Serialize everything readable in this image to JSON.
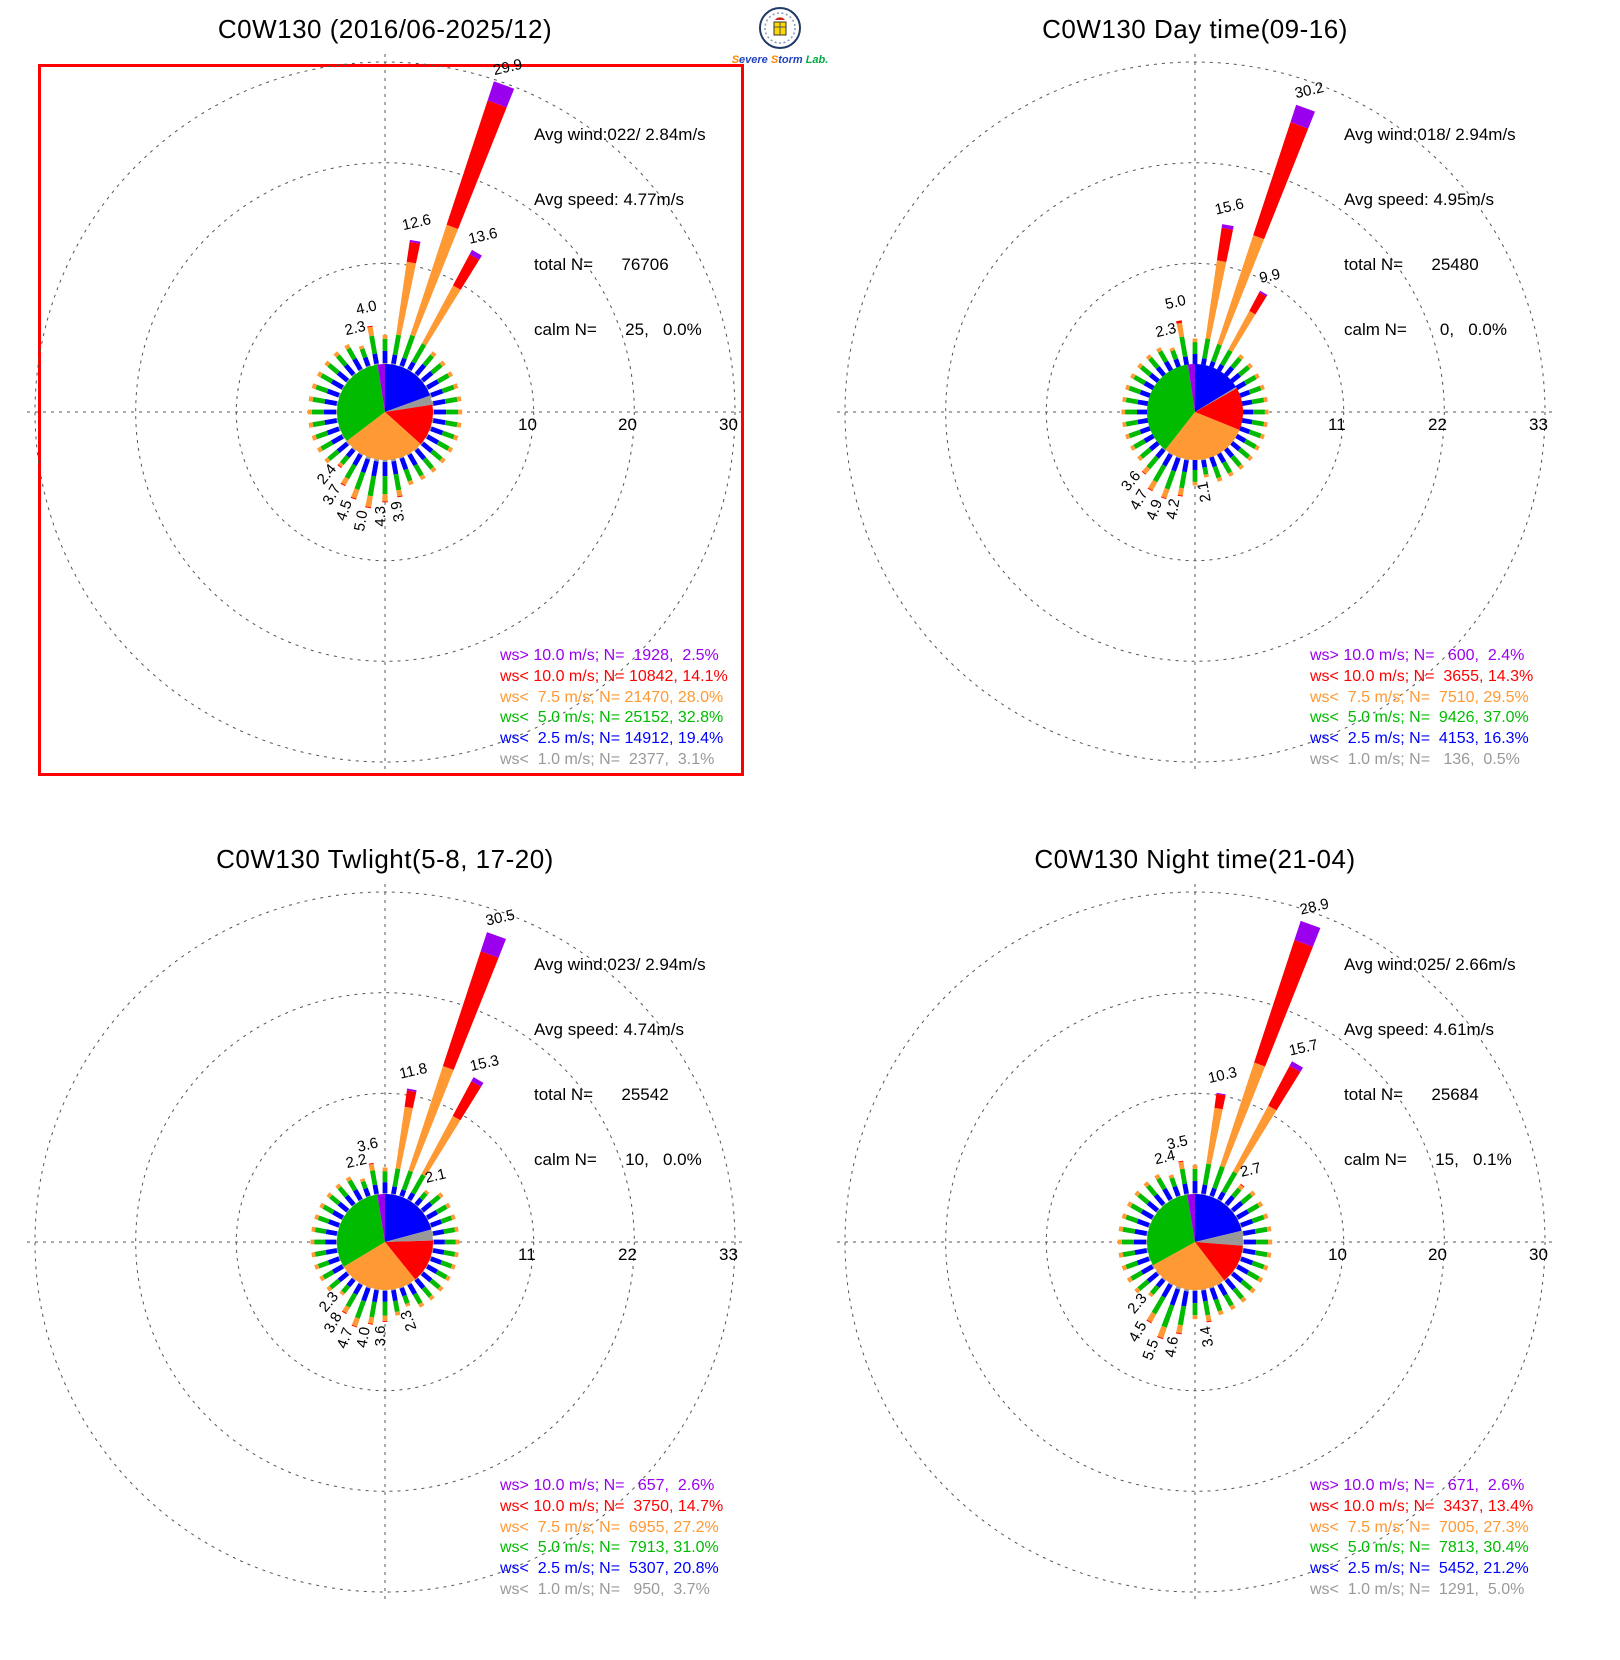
{
  "colors": {
    "purple": "#9b00ee",
    "red": "#ff0000",
    "orange": "#ff9933",
    "green": "#00bb00",
    "blue": "#0000ff",
    "gray": "#999999",
    "grid": "#555555",
    "highlight_border": "#ff0000"
  },
  "logo": {
    "parts": [
      {
        "t": "S",
        "c": "#ff8800"
      },
      {
        "t": "evere ",
        "c": "#2244bb"
      },
      {
        "t": "S",
        "c": "#ff8800"
      },
      {
        "t": "torm ",
        "c": "#2244bb"
      },
      {
        "t": "Lab.",
        "c": "#00aa44"
      }
    ]
  },
  "chart_data": [
    {
      "type": "wind-rose",
      "title": "C0W130 (2016/06-2025/12)",
      "highlighted": true,
      "stats": [
        "Avg wind:022/ 2.84m/s",
        "Avg speed: 4.77m/s",
        "total N=      76706",
        "calm N=      25,   0.0%"
      ],
      "ring_values": [
        10,
        20,
        30
      ],
      "speed_bins": [
        {
          "label": "ws> 10.0 m/s; N=  1928,  2.5%",
          "color": "purple",
          "pct": 2.5
        },
        {
          "label": "ws< 10.0 m/s; N= 10842, 14.1%",
          "color": "red",
          "pct": 14.1
        },
        {
          "label": "ws<  7.5 m/s; N= 21470, 28.0%",
          "color": "orange",
          "pct": 28.0
        },
        {
          "label": "ws<  5.0 m/s; N= 25152, 32.8%",
          "color": "green",
          "pct": 32.8
        },
        {
          "label": "ws<  2.5 m/s; N= 14912, 19.4%",
          "color": "blue",
          "pct": 19.4
        },
        {
          "label": "ws<  1.0 m/s; N=  2377,  3.1%",
          "color": "gray",
          "pct": 3.1
        }
      ],
      "default_petal": [
        0.2,
        1.2,
        1.2,
        0.4,
        0,
        0
      ],
      "petals": {
        "10": {
          "v": [
            0.2,
            0.9,
            2.0,
            7.3,
            2.0,
            0.2
          ],
          "label": "12.6"
        },
        "20": {
          "v": [
            0.2,
            0.8,
            2.4,
            11.5,
            13.0,
            2.0
          ],
          "label": "29.9"
        },
        "30": {
          "v": [
            0.2,
            0.8,
            2.1,
            6.5,
            3.5,
            0.5
          ],
          "label": "13.6"
        },
        "170": {
          "v": [
            0.3,
            1.3,
            1.6,
            0.6,
            0.1,
            0
          ],
          "label": "3.9"
        },
        "180": {
          "v": [
            0.3,
            1.4,
            1.8,
            0.7,
            0.1,
            0
          ],
          "label": "4.3"
        },
        "190": {
          "v": [
            0.3,
            1.5,
            2.0,
            1.1,
            0.1,
            0
          ],
          "label": "5.0"
        },
        "200": {
          "v": [
            0.3,
            1.4,
            1.8,
            0.9,
            0.1,
            0
          ],
          "label": "4.5"
        },
        "210": {
          "v": [
            0.2,
            1.2,
            1.5,
            0.7,
            0.1,
            0
          ],
          "label": "3.7"
        },
        "220": {
          "v": [
            0.2,
            0.9,
            0.9,
            0.3,
            0.1,
            0
          ],
          "label": "2.4"
        },
        "340": {
          "v": [
            0.2,
            0.9,
            0.9,
            0.3,
            0,
            0
          ],
          "label": "2.3"
        },
        "350": {
          "v": [
            0.2,
            1.0,
            1.8,
            0.9,
            0.1,
            0
          ],
          "label": "4.0"
        }
      }
    },
    {
      "type": "wind-rose",
      "title": "C0W130 Day time(09-16)",
      "highlighted": false,
      "stats": [
        "Avg wind:018/ 2.94m/s",
        "Avg speed: 4.95m/s",
        "total N=      25480",
        "calm N=       0,   0.0%"
      ],
      "ring_values": [
        11,
        22,
        33
      ],
      "speed_bins": [
        {
          "label": "ws> 10.0 m/s; N=   600,  2.4%",
          "color": "purple",
          "pct": 2.4
        },
        {
          "label": "ws< 10.0 m/s; N=  3655, 14.3%",
          "color": "red",
          "pct": 14.3
        },
        {
          "label": "ws<  7.5 m/s; N=  7510, 29.5%",
          "color": "orange",
          "pct": 29.5
        },
        {
          "label": "ws<  5.0 m/s; N=  9426, 37.0%",
          "color": "green",
          "pct": 37.0
        },
        {
          "label": "ws<  2.5 m/s; N=  4153, 16.3%",
          "color": "blue",
          "pct": 16.3
        },
        {
          "label": "ws<  1.0 m/s; N=   136,  0.5%",
          "color": "gray",
          "pct": 0.5
        }
      ],
      "default_petal": [
        0.1,
        1.1,
        1.3,
        0.4,
        0,
        0
      ],
      "petals": {
        "10": {
          "v": [
            0.1,
            0.7,
            2.2,
            8.6,
            3.6,
            0.4
          ],
          "label": "15.6"
        },
        "20": {
          "v": [
            0.1,
            0.6,
            2.0,
            12.5,
            13.0,
            2.0
          ],
          "label": "30.2"
        },
        "30": {
          "v": [
            0.1,
            0.7,
            1.8,
            4.8,
            2.3,
            0.2
          ],
          "label": "9.9"
        },
        "170": {
          "v": [
            0.2,
            0.8,
            0.8,
            0.3,
            0,
            0
          ],
          "label": "2.1"
        },
        "190": {
          "v": [
            0.2,
            1.3,
            1.8,
            0.8,
            0.1,
            0
          ],
          "label": "4.2"
        },
        "200": {
          "v": [
            0.2,
            1.5,
            2.1,
            1.0,
            0.1,
            0
          ],
          "label": "4.9"
        },
        "210": {
          "v": [
            0.2,
            1.4,
            2.0,
            1.0,
            0.1,
            0
          ],
          "label": "4.7"
        },
        "220": {
          "v": [
            0.2,
            1.1,
            1.5,
            0.7,
            0.1,
            0
          ],
          "label": "3.6"
        },
        "340": {
          "v": [
            0.1,
            0.9,
            1.0,
            0.3,
            0,
            0
          ],
          "label": "2.3"
        },
        "350": {
          "v": [
            0.1,
            0.9,
            2.2,
            1.5,
            0.3,
            0
          ],
          "label": "5.0"
        }
      }
    },
    {
      "type": "wind-rose",
      "title": "C0W130 Twlight(5-8, 17-20)",
      "highlighted": false,
      "stats": [
        "Avg wind:023/ 2.94m/s",
        "Avg speed: 4.74m/s",
        "total N=      25542",
        "calm N=      10,   0.0%"
      ],
      "ring_values": [
        11,
        22,
        33
      ],
      "speed_bins": [
        {
          "label": "ws> 10.0 m/s; N=   657,  2.6%",
          "color": "purple",
          "pct": 2.6
        },
        {
          "label": "ws< 10.0 m/s; N=  3750, 14.7%",
          "color": "red",
          "pct": 14.7
        },
        {
          "label": "ws<  7.5 m/s; N=  6955, 27.2%",
          "color": "orange",
          "pct": 27.2
        },
        {
          "label": "ws<  5.0 m/s; N=  7913, 31.0%",
          "color": "green",
          "pct": 31.0
        },
        {
          "label": "ws<  2.5 m/s; N=  5307, 20.8%",
          "color": "blue",
          "pct": 20.8
        },
        {
          "label": "ws<  1.0 m/s; N=   950,  3.7%",
          "color": "gray",
          "pct": 3.7
        }
      ],
      "default_petal": [
        0.2,
        1.2,
        1.2,
        0.4,
        0,
        0
      ],
      "petals": {
        "10": {
          "v": [
            0.2,
            0.8,
            2.0,
            6.8,
            1.8,
            0.2
          ],
          "label": "11.8"
        },
        "20": {
          "v": [
            0.2,
            0.7,
            2.2,
            12.0,
            13.2,
            2.2
          ],
          "label": "30.5"
        },
        "30": {
          "v": [
            0.2,
            0.8,
            2.3,
            7.2,
            4.3,
            0.5
          ],
          "label": "15.3"
        },
        "40": {
          "v": [
            0.2,
            0.8,
            0.8,
            0.3,
            0,
            0
          ],
          "label": "2.1"
        },
        "160": {
          "v": [
            0.2,
            0.9,
            0.9,
            0.3,
            0,
            0
          ],
          "label": "2.3"
        },
        "180": {
          "v": [
            0.2,
            1.2,
            1.5,
            0.6,
            0.1,
            0
          ],
          "label": "3.6"
        },
        "190": {
          "v": [
            0.2,
            1.3,
            1.7,
            0.7,
            0.1,
            0
          ],
          "label": "4.0"
        },
        "200": {
          "v": [
            0.2,
            1.5,
            2.0,
            0.9,
            0.1,
            0
          ],
          "label": "4.7"
        },
        "210": {
          "v": [
            0.2,
            1.2,
            1.6,
            0.7,
            0.1,
            0
          ],
          "label": "3.8"
        },
        "220": {
          "v": [
            0.2,
            0.9,
            0.9,
            0.3,
            0,
            0
          ],
          "label": "2.3"
        },
        "340": {
          "v": [
            0.2,
            0.9,
            0.8,
            0.3,
            0,
            0
          ],
          "label": "2.2"
        },
        "350": {
          "v": [
            0.2,
            1.0,
            1.6,
            0.7,
            0.1,
            0
          ],
          "label": "3.6"
        }
      }
    },
    {
      "type": "wind-rose",
      "title": "C0W130 Night time(21-04)",
      "highlighted": false,
      "stats": [
        "Avg wind:025/ 2.66m/s",
        "Avg speed: 4.61m/s",
        "total N=      25684",
        "calm N=      15,   0.1%"
      ],
      "ring_values": [
        10,
        20,
        30
      ],
      "speed_bins": [
        {
          "label": "ws> 10.0 m/s; N=   671,  2.6%",
          "color": "purple",
          "pct": 2.6
        },
        {
          "label": "ws< 10.0 m/s; N=  3437, 13.4%",
          "color": "red",
          "pct": 13.4
        },
        {
          "label": "ws<  7.5 m/s; N=  7005, 27.3%",
          "color": "orange",
          "pct": 27.3
        },
        {
          "label": "ws<  5.0 m/s; N=  7813, 30.4%",
          "color": "green",
          "pct": 30.4
        },
        {
          "label": "ws<  2.5 m/s; N=  5452, 21.2%",
          "color": "blue",
          "pct": 21.2
        },
        {
          "label": "ws<  1.0 m/s; N=  1291,  5.0%",
          "color": "gray",
          "pct": 5.0
        }
      ],
      "default_petal": [
        0.2,
        1.2,
        1.2,
        0.4,
        0,
        0
      ],
      "petals": {
        "10": {
          "v": [
            0.2,
            0.9,
            2.1,
            5.6,
            1.4,
            0.1
          ],
          "label": "10.3"
        },
        "20": {
          "v": [
            0.2,
            0.8,
            2.3,
            10.8,
            12.8,
            2.0
          ],
          "label": "28.9"
        },
        "30": {
          "v": [
            0.2,
            0.8,
            2.3,
            7.4,
            4.5,
            0.5
          ],
          "label": "15.7"
        },
        "40": {
          "v": [
            0.2,
            1.0,
            1.0,
            0.4,
            0.1,
            0
          ],
          "label": "2.7"
        },
        "170": {
          "v": [
            0.2,
            1.1,
            1.4,
            0.6,
            0.1,
            0
          ],
          "label": "3.4"
        },
        "190": {
          "v": [
            0.3,
            1.5,
            1.9,
            0.8,
            0.1,
            0
          ],
          "label": "4.6"
        },
        "200": {
          "v": [
            0.3,
            1.7,
            2.3,
            1.1,
            0.1,
            0
          ],
          "label": "5.5"
        },
        "210": {
          "v": [
            0.2,
            1.4,
            1.9,
            0.9,
            0.1,
            0
          ],
          "label": "4.5"
        },
        "220": {
          "v": [
            0.2,
            0.9,
            0.9,
            0.3,
            0,
            0
          ],
          "label": "2.3"
        },
        "340": {
          "v": [
            0.2,
            1.0,
            0.9,
            0.3,
            0,
            0
          ],
          "label": "2.4"
        },
        "350": {
          "v": [
            0.2,
            1.0,
            1.5,
            0.7,
            0.1,
            0
          ],
          "label": "3.5"
        }
      }
    }
  ]
}
